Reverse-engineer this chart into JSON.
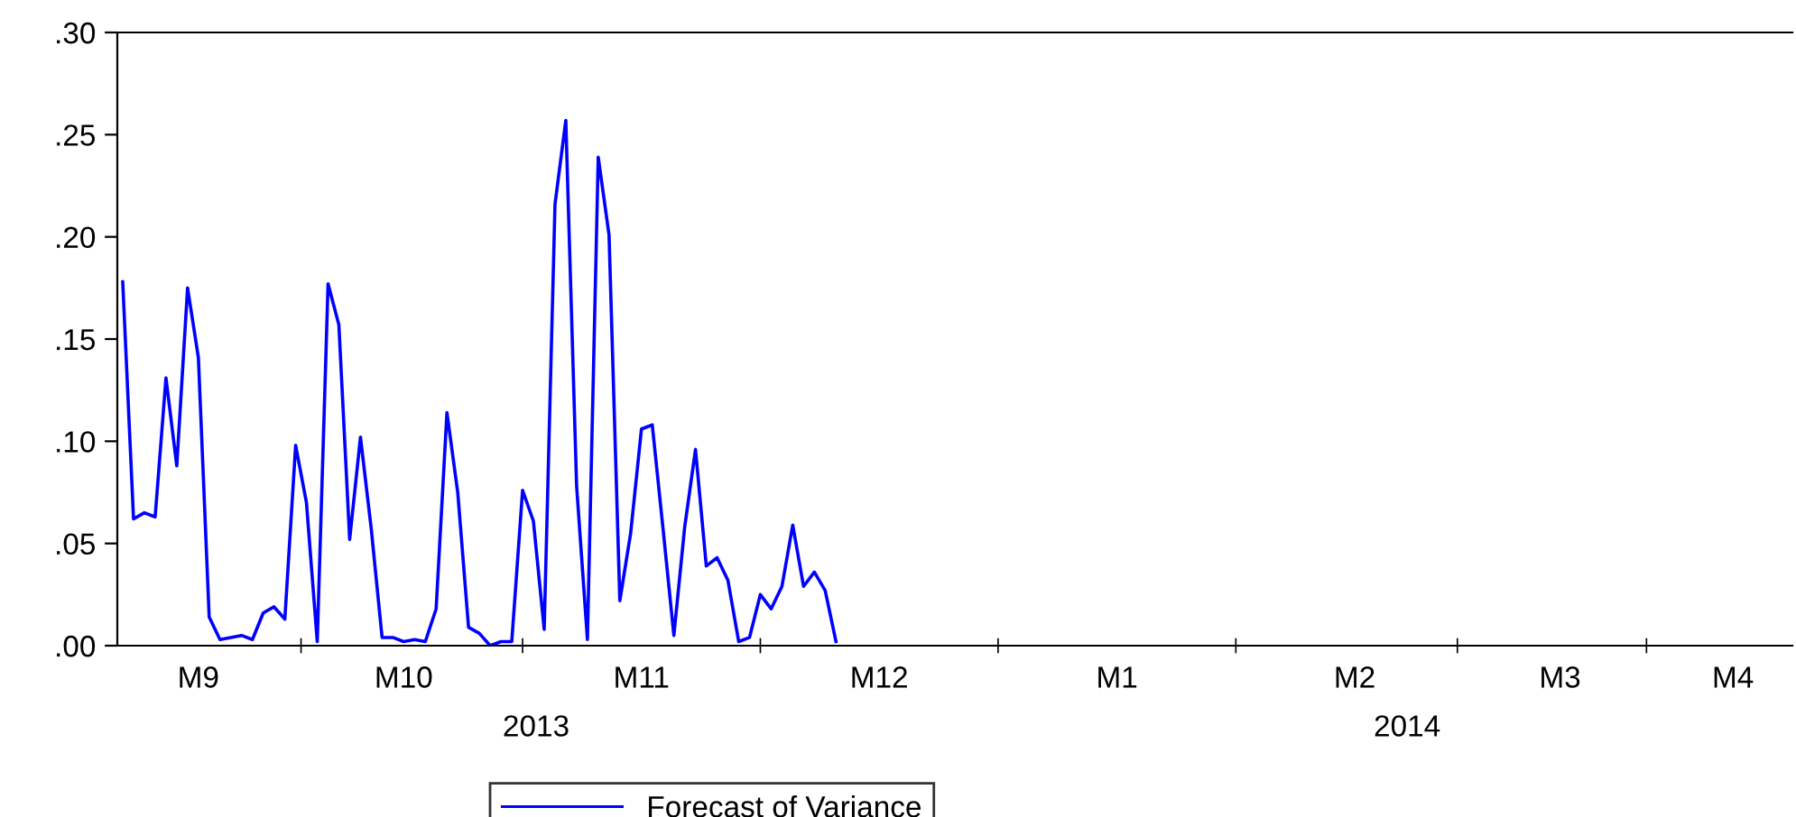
{
  "chart_data": {
    "type": "line",
    "categories": [
      null,
      null,
      null,
      null,
      null,
      null,
      null,
      "M9",
      null,
      null,
      null,
      null,
      null,
      null,
      null,
      null,
      null,
      null,
      null,
      null,
      null,
      null,
      null,
      null,
      null,
      null,
      "M10",
      null,
      null,
      null,
      null,
      null,
      null,
      null,
      null,
      null,
      null,
      null,
      null,
      null,
      null,
      null,
      null,
      null,
      null,
      null,
      null,
      null,
      "M11",
      null,
      null,
      null,
      null,
      null,
      null,
      null,
      null,
      null,
      null,
      null,
      null,
      null,
      null,
      null,
      null,
      null,
      null,
      null,
      null,
      null,
      "M12",
      null,
      null,
      null,
      null,
      null,
      null,
      null,
      null,
      null,
      null,
      null,
      null,
      null,
      null,
      null,
      null,
      null,
      null,
      null,
      null,
      null,
      "M1",
      null,
      null,
      null,
      null,
      null,
      null,
      null,
      null,
      null,
      null,
      null,
      null,
      null,
      null,
      null,
      null,
      null,
      null,
      null,
      null,
      null,
      "M2",
      null,
      null,
      null,
      null,
      null,
      null,
      null,
      null,
      null,
      null,
      null,
      null,
      null,
      null,
      null,
      null,
      null,
      null,
      "M3",
      null,
      null,
      null,
      null,
      null,
      null,
      null,
      null,
      null,
      null,
      null,
      null,
      null,
      null,
      null,
      "M4",
      null,
      null,
      null,
      null,
      null
    ],
    "series": [
      {
        "name": "Forecast of Variance",
        "color": "#0000ff",
        "values": [
          0.178,
          0.062,
          0.065,
          0.063,
          0.131,
          0.088,
          0.175,
          0.141,
          0.014,
          0.003,
          0.004,
          0.005,
          0.003,
          0.016,
          0.019,
          0.013,
          0.098,
          0.07,
          0.002,
          0.177,
          0.157,
          0.052,
          0.102,
          0.057,
          0.004,
          0.004,
          0.002,
          0.003,
          0.002,
          0.018,
          0.114,
          0.075,
          0.009,
          0.006,
          0.0,
          0.002,
          0.002,
          0.076,
          0.061,
          0.008,
          0.216,
          0.257,
          0.078,
          0.003,
          0.239,
          0.201,
          0.022,
          0.055,
          0.106,
          0.108,
          0.057,
          0.005,
          0.058,
          0.096,
          0.039,
          0.043,
          0.032,
          0.002,
          0.004,
          0.025,
          0.018,
          0.029,
          0.059,
          0.029,
          0.036,
          0.027,
          0.002,
          null,
          null,
          null,
          null,
          null,
          null,
          null,
          null,
          null,
          null,
          null,
          null,
          null,
          null,
          null,
          null,
          null,
          null,
          null,
          null,
          null,
          null,
          null,
          null,
          null,
          null,
          null,
          null,
          null,
          null,
          null,
          null,
          null,
          null,
          null,
          null,
          null,
          null,
          null,
          null,
          null,
          null,
          null,
          null,
          null,
          null,
          null,
          null,
          null,
          null,
          null,
          null,
          null,
          null,
          null,
          null,
          null,
          null,
          null,
          null,
          null,
          null,
          null,
          null,
          null,
          null,
          null,
          null,
          null,
          null,
          null,
          null,
          null,
          null,
          null,
          null,
          null,
          null,
          null,
          null,
          null,
          null,
          null,
          null,
          null,
          null,
          null,
          null
        ]
      }
    ],
    "ylim": [
      0,
      0.3
    ],
    "yticks": [
      {
        "value": 0,
        "label": ".00"
      },
      {
        "value": 0.05,
        "label": ".05"
      },
      {
        "value": 0.1,
        "label": ".10"
      },
      {
        "value": 0.15,
        "label": ".15"
      },
      {
        "value": 0.2,
        "label": ".20"
      },
      {
        "value": 0.25,
        "label": ".25"
      },
      {
        "value": 0.3,
        "label": ".30"
      }
    ],
    "annotations": [
      "2013",
      "2014"
    ],
    "legend": "bottom",
    "grid": false
  }
}
